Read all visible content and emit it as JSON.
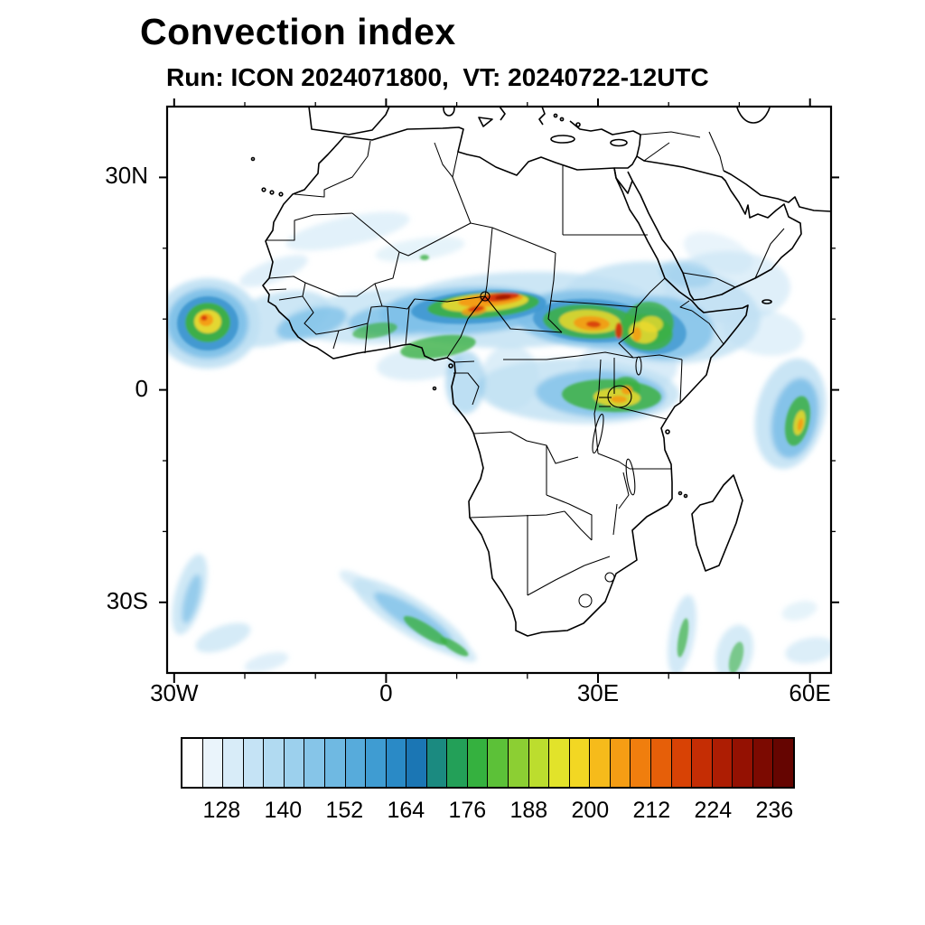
{
  "title": "Convection index",
  "subtitle": "Run: ICON 2024071800,  VT: 20240722-12UTC",
  "map": {
    "y_axis_labels": [
      {
        "label": "30N",
        "lat": 30
      },
      {
        "label": "0",
        "lat": 0
      },
      {
        "label": "30S",
        "lat": -30
      }
    ],
    "x_axis_labels": [
      {
        "label": "30W",
        "lon": -30
      },
      {
        "label": "0",
        "lon": 0
      },
      {
        "label": "30E",
        "lon": 30
      },
      {
        "label": "60E",
        "lon": 60
      }
    ]
  },
  "colorbar": {
    "min": 120,
    "max": 240,
    "step": 4,
    "tick_labels": [
      128,
      140,
      152,
      164,
      176,
      188,
      200,
      212,
      224,
      236
    ],
    "colors": [
      "#ffffff",
      "#eaf4fb",
      "#d8ecf8",
      "#c5e3f5",
      "#b1daf1",
      "#9cd0ed",
      "#86c5e8",
      "#6fb9e2",
      "#57abdb",
      "#3f9cd2",
      "#2a8ac6",
      "#1b76b4",
      "#1b8a80",
      "#23a058",
      "#35b13f",
      "#5cc138",
      "#8ccf33",
      "#bcdd2e",
      "#e2e32a",
      "#f2d723",
      "#f6bb1b",
      "#f59d14",
      "#f07e0e",
      "#e65f09",
      "#d84205",
      "#c52d04",
      "#ad1d03",
      "#941102",
      "#7c0a01",
      "#650501"
    ]
  },
  "chart_data": {
    "type": "heatmap",
    "title": "Convection index",
    "model": "ICON",
    "run": "2024071800",
    "valid_time": "20240722-12UTC",
    "projection": "cylindrical lat-lon over Africa",
    "lon_range": [
      -31,
      63
    ],
    "lat_range": [
      -40,
      40
    ],
    "x_ticks": [
      "30W",
      "0",
      "30E",
      "60E"
    ],
    "y_ticks": [
      "30N",
      "0",
      "30S"
    ],
    "colorbar_levels_min": 120,
    "colorbar_levels_max": 240,
    "colorbar_level_step": 4,
    "colorbar_tick_labels": [
      128,
      140,
      152,
      164,
      176,
      188,
      200,
      212,
      224,
      236
    ],
    "legend_position": "bottom",
    "grid": false,
    "features": [
      {
        "region": "Tropical Atlantic blob west of Senegal (~25W, 10N)",
        "approx_max_value": 222
      },
      {
        "region": "Sahel band Senegal to Sudan (5N-17N)",
        "approx_max_value": 236
      },
      {
        "region": "Central Sahel core Niger/Chad/Nigeria (~12-20E, 12-14N)",
        "approx_max_value": 240
      },
      {
        "region": "Sudan/Ethiopia border streak (~33E, 9N)",
        "approx_max_value": 232
      },
      {
        "region": "Ethiopian highlands (35-40E, 6-13N)",
        "approx_max_value": 212
      },
      {
        "region": "Congo basin / Lake Victoria equatorial band (16-35E, 5S-3N)",
        "approx_max_value": 216
      },
      {
        "region": "Guinea coast / Ghana-Nigeria (5W-10E, 4-8N)",
        "approx_max_value": 196
      },
      {
        "region": "Western Indian Ocean streak (~57E, 0-10S)",
        "approx_max_value": 212
      },
      {
        "region": "South Atlantic storm-track streaks (30-40S)",
        "approx_max_value": 190
      },
      {
        "region": "Mozambique Channel / SW Indian Ocean streaks (30-40S)",
        "approx_max_value": 184
      },
      {
        "region": "Saharan light wisps (18-25N)",
        "approx_max_value": 140
      },
      {
        "region": "Red Sea / Arabia light wash (12-22N, 35-55E)",
        "approx_max_value": 148
      }
    ]
  }
}
